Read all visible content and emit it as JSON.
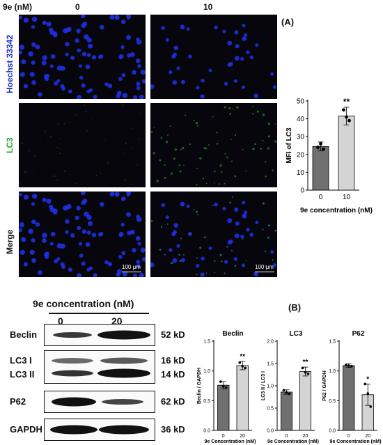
{
  "figure": {
    "panel_a_label": "(A)",
    "panel_b_label": "(B)",
    "dose_header": "9e (nM)",
    "dose_columns": [
      "0",
      "10"
    ],
    "row_labels": [
      "Hoechst 33342",
      "LC3",
      "Merge"
    ],
    "row_colors": [
      "#1f2fb8",
      "#2aa02a",
      "#111111"
    ],
    "scale_bar": "100 μm",
    "wb_header": "9e concentration (nM)",
    "wb_lanes": [
      "0",
      "20"
    ],
    "wb_proteins": [
      "Beclin",
      "LC3 I",
      "LC3 II",
      "P62",
      "GAPDH"
    ],
    "wb_sizes": [
      "52 kD",
      "16 kD",
      "14 kD",
      "62 kD",
      "36 kD"
    ]
  },
  "chart_data": [
    {
      "type": "bar",
      "categories": [
        "0",
        "10"
      ],
      "values": [
        24.5,
        41.5
      ],
      "errors": [
        2.5,
        5.0
      ],
      "points": [
        [
          24,
          26,
          23
        ],
        [
          45,
          41,
          39
        ]
      ],
      "title": "",
      "xlabel": "9e concentration (nM)",
      "ylabel": "MFI of LC3",
      "ylim": [
        0,
        50
      ],
      "yticks": [
        0,
        10,
        20,
        30,
        40,
        50
      ],
      "significance": [
        "",
        "**"
      ],
      "bar_colors": [
        "#707070",
        "#d4d4d4"
      ]
    },
    {
      "type": "bar",
      "categories": [
        "0",
        "20"
      ],
      "values": [
        0.76,
        1.09
      ],
      "errors": [
        0.06,
        0.07
      ],
      "points": [
        [
          0.82,
          0.74,
          0.72
        ],
        [
          1.14,
          1.08,
          1.05
        ]
      ],
      "title": "Beclin",
      "xlabel": "9e Concentration (nM)",
      "ylabel": "Beclin / GAPDH",
      "ylim": [
        0,
        1.5
      ],
      "yticks": [
        0.0,
        0.5,
        1.0,
        1.5
      ],
      "significance": [
        "",
        "**"
      ],
      "bar_colors": [
        "#707070",
        "#d4d4d4"
      ]
    },
    {
      "type": "bar",
      "categories": [
        "0",
        "20"
      ],
      "values": [
        0.86,
        1.32
      ],
      "errors": [
        0.05,
        0.1
      ],
      "points": [
        [
          0.9,
          0.85,
          0.82
        ],
        [
          1.4,
          1.3,
          1.27
        ]
      ],
      "title": "LC3",
      "xlabel": "9e Concentration (nM)",
      "ylabel": "LC3 II / LC3 I",
      "ylim": [
        0,
        2.0
      ],
      "yticks": [
        0.0,
        0.5,
        1.0,
        1.5,
        2.0
      ],
      "significance": [
        "",
        "**"
      ],
      "bar_colors": [
        "#707070",
        "#d4d4d4"
      ]
    },
    {
      "type": "bar",
      "categories": [
        "0",
        "20"
      ],
      "values": [
        1.09,
        0.6
      ],
      "errors": [
        0.03,
        0.18
      ],
      "points": [
        [
          1.1,
          1.09,
          1.08
        ],
        [
          0.78,
          0.62,
          0.4
        ]
      ],
      "title": "P62",
      "xlabel": "9e Concentration (nM)",
      "ylabel": "P62 / GAPDH",
      "ylim": [
        0,
        1.5
      ],
      "yticks": [
        0.0,
        0.5,
        1.0,
        1.5
      ],
      "significance": [
        "",
        "*"
      ],
      "bar_colors": [
        "#707070",
        "#d4d4d4"
      ]
    }
  ]
}
